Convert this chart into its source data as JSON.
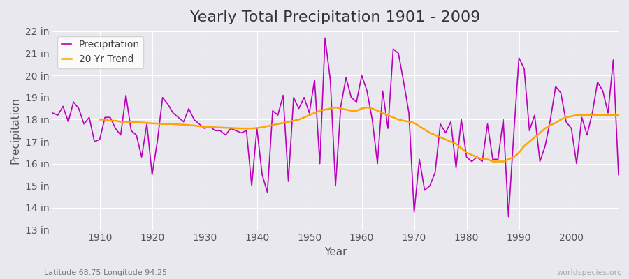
{
  "title": "Yearly Total Precipitation 1901 - 2009",
  "xlabel": "Year",
  "ylabel": "Precipitation",
  "subtitle": "Latitude 68.75 Longitude 94.25",
  "watermark": "worldspecies.org",
  "years": [
    1901,
    1902,
    1903,
    1904,
    1905,
    1906,
    1907,
    1908,
    1909,
    1910,
    1911,
    1912,
    1913,
    1914,
    1915,
    1916,
    1917,
    1918,
    1919,
    1920,
    1921,
    1922,
    1923,
    1924,
    1925,
    1926,
    1927,
    1928,
    1929,
    1930,
    1931,
    1932,
    1933,
    1934,
    1935,
    1936,
    1937,
    1938,
    1939,
    1940,
    1941,
    1942,
    1943,
    1944,
    1945,
    1946,
    1947,
    1948,
    1949,
    1950,
    1951,
    1952,
    1953,
    1954,
    1955,
    1956,
    1957,
    1958,
    1959,
    1960,
    1961,
    1962,
    1963,
    1964,
    1965,
    1966,
    1967,
    1968,
    1969,
    1970,
    1971,
    1972,
    1973,
    1974,
    1975,
    1976,
    1977,
    1978,
    1979,
    1980,
    1981,
    1982,
    1983,
    1984,
    1985,
    1986,
    1987,
    1988,
    1989,
    1990,
    1991,
    1992,
    1993,
    1994,
    1995,
    1996,
    1997,
    1998,
    1999,
    2000,
    2001,
    2002,
    2003,
    2004,
    2005,
    2006,
    2007,
    2008,
    2009
  ],
  "precip": [
    18.3,
    18.2,
    18.6,
    17.9,
    18.8,
    18.5,
    17.8,
    18.1,
    17.0,
    17.1,
    18.1,
    18.1,
    17.6,
    17.3,
    19.1,
    17.5,
    17.3,
    16.3,
    17.8,
    15.5,
    17.0,
    19.0,
    18.7,
    18.3,
    18.1,
    17.9,
    18.5,
    18.0,
    17.8,
    17.6,
    17.7,
    17.5,
    17.5,
    17.3,
    17.6,
    17.5,
    17.4,
    17.5,
    15.0,
    17.6,
    15.5,
    14.7,
    18.4,
    18.2,
    19.1,
    15.2,
    19.0,
    18.5,
    19.0,
    18.3,
    19.8,
    16.0,
    21.7,
    19.8,
    15.0,
    18.6,
    19.9,
    19.0,
    18.8,
    20.0,
    19.3,
    18.0,
    16.0,
    19.3,
    17.6,
    21.2,
    21.0,
    19.7,
    18.3,
    13.8,
    16.2,
    14.8,
    15.0,
    15.6,
    17.8,
    17.4,
    17.9,
    15.8,
    18.0,
    16.3,
    16.1,
    16.3,
    16.1,
    17.8,
    16.2,
    16.2,
    18.0,
    13.6,
    17.3,
    20.8,
    20.3,
    17.5,
    18.2,
    16.1,
    16.8,
    18.0,
    19.5,
    19.2,
    17.9,
    17.6,
    16.0,
    18.1,
    17.3,
    18.3,
    19.7,
    19.3,
    18.3,
    20.7,
    15.5
  ],
  "trend_start": 1910,
  "trend": [
    18.0,
    18.0,
    17.95,
    17.95,
    17.9,
    17.9,
    17.9,
    17.88,
    17.87,
    17.85,
    17.83,
    17.82,
    17.8,
    17.8,
    17.8,
    17.78,
    17.77,
    17.75,
    17.73,
    17.7,
    17.68,
    17.66,
    17.65,
    17.64,
    17.63,
    17.62,
    17.61,
    17.6,
    17.6,
    17.6,
    17.62,
    17.65,
    17.7,
    17.75,
    17.8,
    17.85,
    17.9,
    17.95,
    18.0,
    18.1,
    18.2,
    18.3,
    18.4,
    18.45,
    18.5,
    18.55,
    18.5,
    18.45,
    18.4,
    18.4,
    18.5,
    18.55,
    18.5,
    18.4,
    18.3,
    18.2,
    18.1,
    18.0,
    17.95,
    17.9,
    17.85,
    17.7,
    17.55,
    17.4,
    17.3,
    17.2,
    17.1,
    17.0,
    16.9,
    16.7,
    16.5,
    16.4,
    16.3,
    16.2,
    16.2,
    16.1,
    16.1,
    16.1,
    16.2,
    16.3,
    16.5,
    16.8,
    17.0,
    17.2,
    17.4,
    17.6,
    17.75,
    17.85,
    18.0,
    18.1,
    18.15,
    18.2,
    18.2,
    18.2,
    18.2,
    18.2,
    18.2,
    18.2,
    18.2,
    18.2
  ],
  "precip_color": "#bb00bb",
  "trend_color": "#ffa500",
  "bg_color": "#e8e8ee",
  "grid_color": "#ffffff",
  "ylim": [
    13,
    22
  ],
  "yticks": [
    13,
    14,
    15,
    16,
    17,
    18,
    19,
    20,
    21,
    22
  ],
  "ytick_labels": [
    "13 in",
    "14 in",
    "15 in",
    "16 in",
    "17 in",
    "18 in",
    "19 in",
    "20 in",
    "21 in",
    "22 in"
  ],
  "xlim": [
    1901,
    2009
  ],
  "xticks": [
    1910,
    1920,
    1930,
    1940,
    1950,
    1960,
    1970,
    1980,
    1990,
    2000
  ],
  "title_fontsize": 16,
  "axis_fontsize": 11,
  "tick_fontsize": 10,
  "legend_fontsize": 10
}
